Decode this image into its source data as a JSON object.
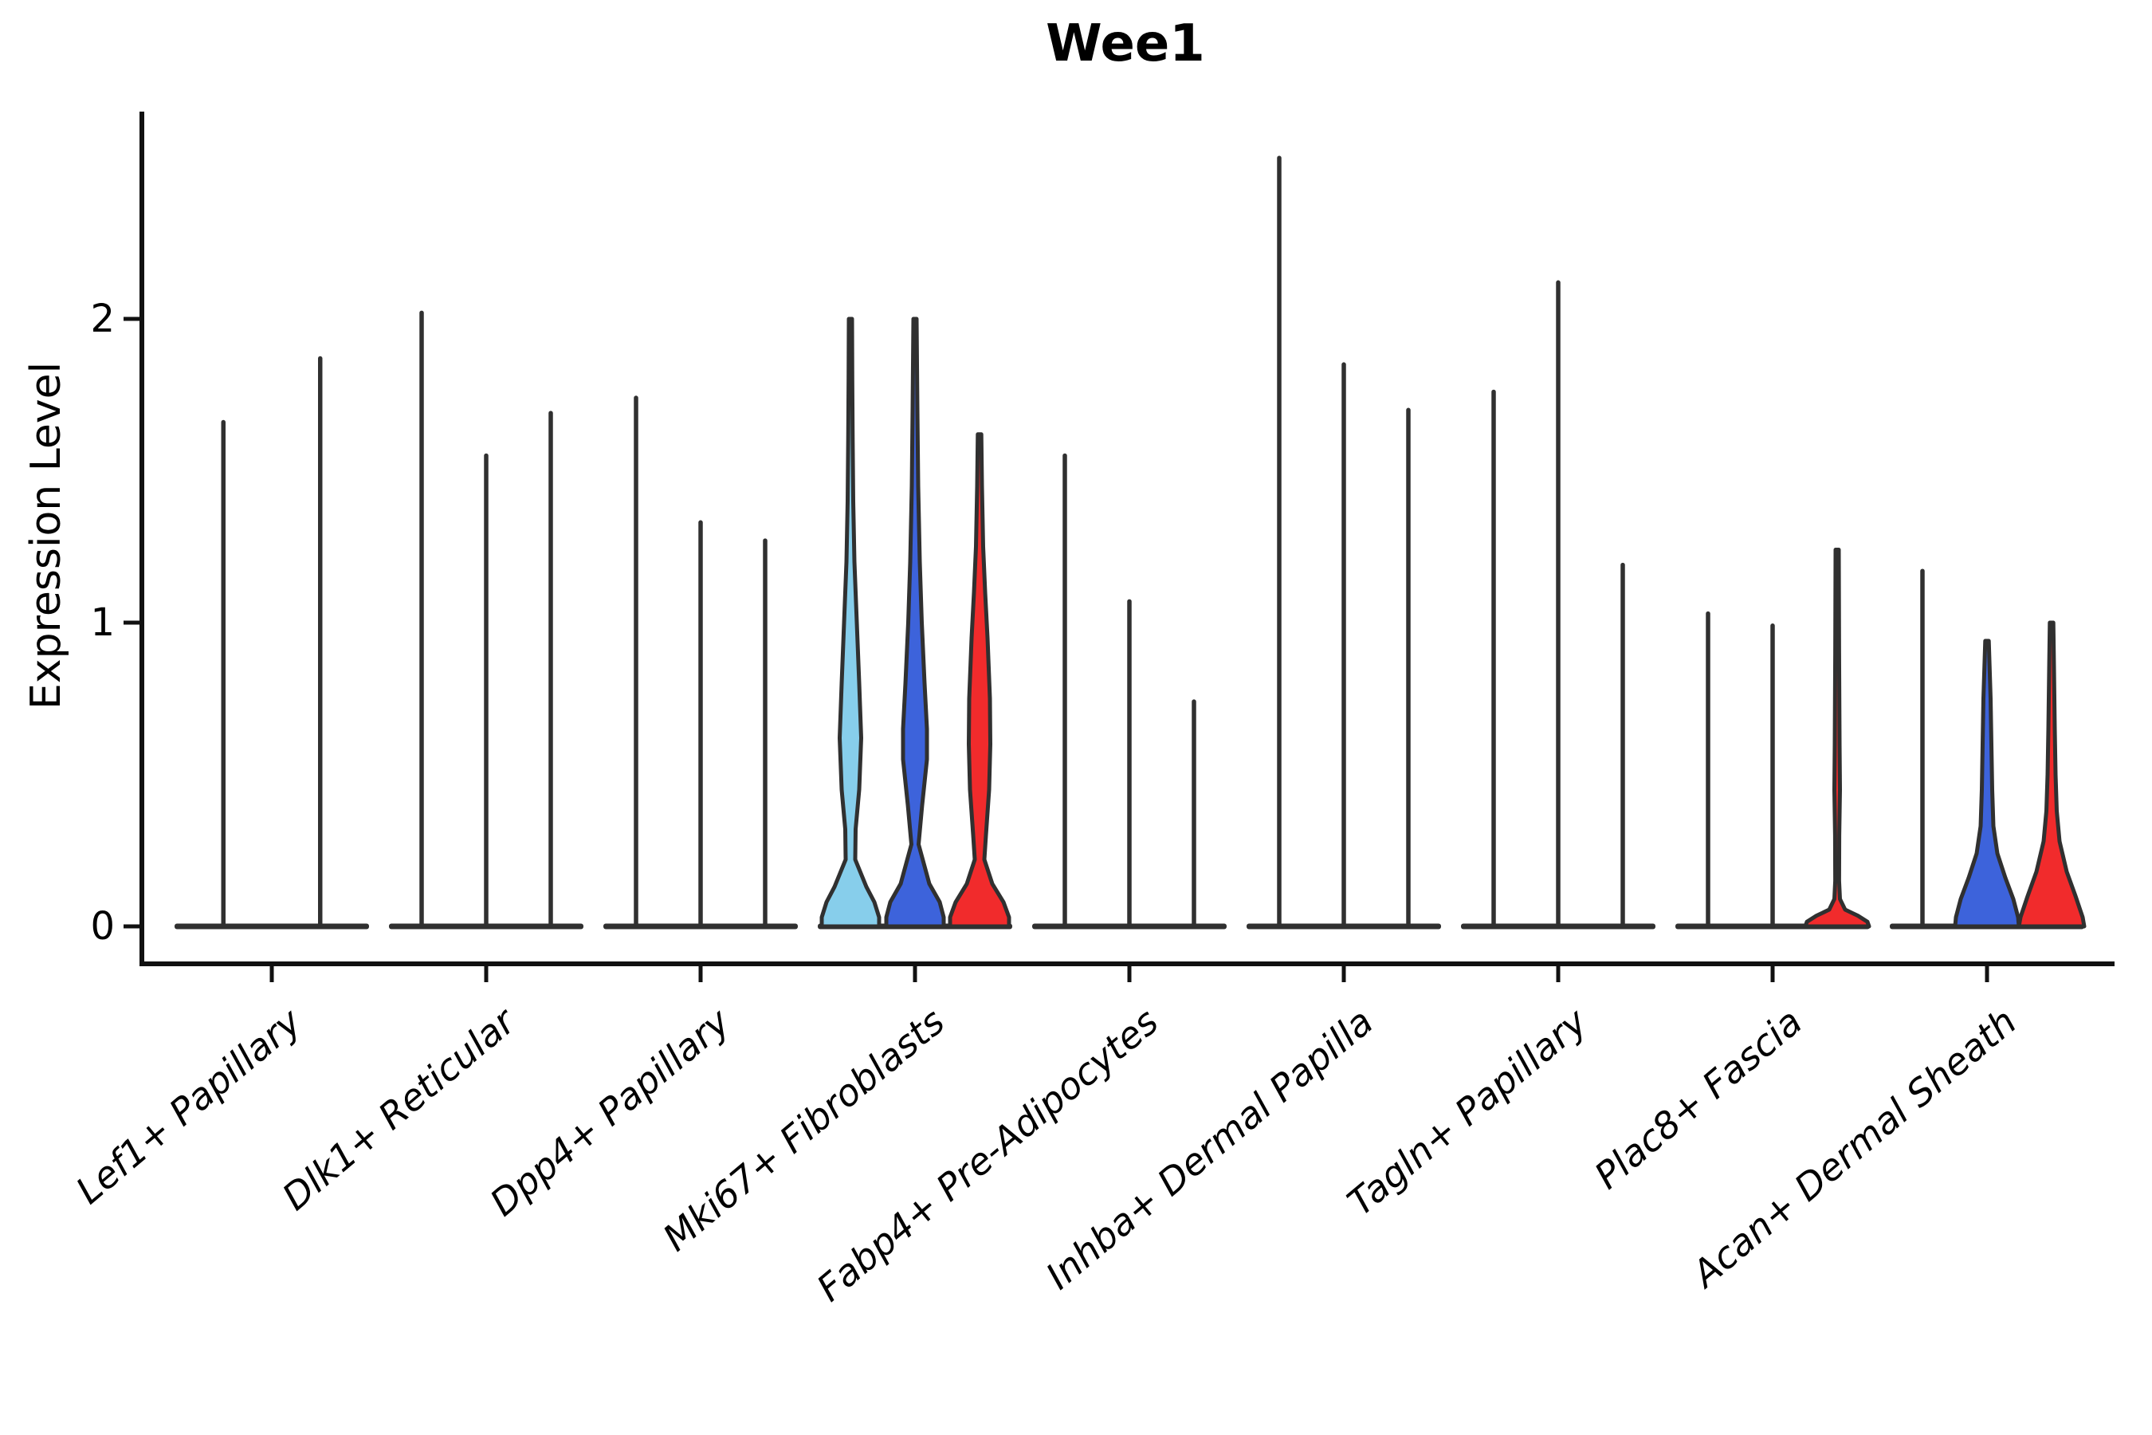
{
  "title": "Wee1",
  "colors": {
    "skyblue": "#87CEEB",
    "blue": "#3D63DB",
    "red": "#F12B2C",
    "outline": "#303030",
    "axis": "#111111"
  },
  "chart_data": {
    "type": "violin",
    "title": "Wee1",
    "xlabel": "",
    "ylabel": "Expression Level",
    "yticks": [
      0,
      1,
      2
    ],
    "ytick_labels": [
      "0",
      "1",
      "2"
    ],
    "ylim": [
      -0.17,
      2.68
    ],
    "grid": false,
    "legend": false,
    "categories": [
      "Lef1+ Papillary",
      "Dlk1+ Reticular",
      "Dpp4+ Papillary",
      "Mki67+ Fibroblasts",
      "Fabp4+ Pre-Adipocytes",
      "Inhba+ Dermal Papilla",
      "Tagln+ Papillary",
      "Plac8+ Fascia",
      "Acan+ Dermal Sheath"
    ],
    "groups": [
      {
        "violins": [
          {
            "kind": "spike",
            "pos": -0.75,
            "max": 1.66
          },
          {
            "kind": "spike",
            "pos": 0.75,
            "max": 1.87
          }
        ]
      },
      {
        "violins": [
          {
            "kind": "spike",
            "pos": -1,
            "max": 2.02
          },
          {
            "kind": "spike",
            "pos": 0,
            "max": 1.55
          },
          {
            "kind": "spike",
            "pos": 1,
            "max": 1.69
          }
        ]
      },
      {
        "violins": [
          {
            "kind": "spike",
            "pos": -1,
            "max": 1.74
          },
          {
            "kind": "spike",
            "pos": 0,
            "max": 1.33
          },
          {
            "kind": "spike",
            "pos": 1,
            "max": 1.27
          }
        ]
      },
      {
        "violins": [
          {
            "kind": "shape",
            "pos": -1,
            "max": 2.0,
            "color": "skyblue",
            "profile": [
              [
                0,
                36
              ],
              [
                0.03,
                36
              ],
              [
                0.08,
                30
              ],
              [
                0.13,
                20
              ],
              [
                0.22,
                6
              ],
              [
                0.32,
                6.5
              ],
              [
                0.45,
                11
              ],
              [
                0.62,
                13.5
              ],
              [
                0.8,
                11
              ],
              [
                1.0,
                8
              ],
              [
                1.2,
                5
              ],
              [
                1.4,
                3.5
              ],
              [
                1.6,
                2.8
              ],
              [
                1.8,
                2.3
              ],
              [
                2.0,
                2
              ]
            ]
          },
          {
            "kind": "shape",
            "pos": 0,
            "max": 2.0,
            "color": "blue",
            "profile": [
              [
                0,
                36
              ],
              [
                0.03,
                36
              ],
              [
                0.08,
                31
              ],
              [
                0.14,
                18
              ],
              [
                0.27,
                4.5
              ],
              [
                0.4,
                9
              ],
              [
                0.55,
                15
              ],
              [
                0.65,
                15
              ],
              [
                0.8,
                12
              ],
              [
                1.0,
                8.5
              ],
              [
                1.2,
                6
              ],
              [
                1.45,
                4
              ],
              [
                1.7,
                3
              ],
              [
                2.0,
                2
              ]
            ]
          },
          {
            "kind": "shape",
            "pos": 1,
            "max": 1.62,
            "color": "red",
            "profile": [
              [
                0,
                37
              ],
              [
                0.03,
                37
              ],
              [
                0.08,
                30
              ],
              [
                0.14,
                16
              ],
              [
                0.22,
                6
              ],
              [
                0.3,
                8
              ],
              [
                0.45,
                12
              ],
              [
                0.6,
                13.5
              ],
              [
                0.75,
                13
              ],
              [
                0.95,
                10
              ],
              [
                1.1,
                7
              ],
              [
                1.25,
                4.5
              ],
              [
                1.45,
                3
              ],
              [
                1.62,
                2.2
              ]
            ]
          }
        ]
      },
      {
        "violins": [
          {
            "kind": "spike",
            "pos": -1,
            "max": 1.55
          },
          {
            "kind": "spike",
            "pos": 0,
            "max": 1.07
          },
          {
            "kind": "spike",
            "pos": 1,
            "max": 0.74
          }
        ]
      },
      {
        "violins": [
          {
            "kind": "spike",
            "pos": -1,
            "max": 2.53
          },
          {
            "kind": "spike",
            "pos": 0,
            "max": 1.85
          },
          {
            "kind": "spike",
            "pos": 1,
            "max": 1.7
          }
        ]
      },
      {
        "violins": [
          {
            "kind": "spike",
            "pos": -1,
            "max": 1.76
          },
          {
            "kind": "spike",
            "pos": 0,
            "max": 2.12
          },
          {
            "kind": "spike",
            "pos": 1,
            "max": 1.19
          }
        ]
      },
      {
        "violins": [
          {
            "kind": "spike",
            "pos": -1,
            "max": 1.03
          },
          {
            "kind": "spike",
            "pos": 0,
            "max": 0.99
          },
          {
            "kind": "shape",
            "pos": 1,
            "max": 1.24,
            "color": "red",
            "profile": [
              [
                0,
                40
              ],
              [
                0.015,
                38
              ],
              [
                0.035,
                26
              ],
              [
                0.055,
                10
              ],
              [
                0.09,
                3.5
              ],
              [
                0.15,
                2.4
              ],
              [
                0.3,
                2.6
              ],
              [
                0.45,
                3.5
              ],
              [
                0.6,
                3
              ],
              [
                0.9,
                2.4
              ],
              [
                1.24,
                2
              ]
            ]
          }
        ]
      },
      {
        "violins": [
          {
            "kind": "spike",
            "pos": -1,
            "max": 1.17
          },
          {
            "kind": "shape",
            "pos": 0,
            "max": 0.94,
            "color": "blue",
            "profile": [
              [
                0,
                40
              ],
              [
                0.03,
                39
              ],
              [
                0.09,
                33
              ],
              [
                0.16,
                23
              ],
              [
                0.24,
                13
              ],
              [
                0.33,
                8
              ],
              [
                0.45,
                6.5
              ],
              [
                0.6,
                5.5
              ],
              [
                0.75,
                4.5
              ],
              [
                0.94,
                2.2
              ]
            ]
          },
          {
            "kind": "shape",
            "pos": 1,
            "max": 1.0,
            "color": "red",
            "profile": [
              [
                0,
                41
              ],
              [
                0.03,
                39
              ],
              [
                0.1,
                30
              ],
              [
                0.18,
                19
              ],
              [
                0.28,
                10
              ],
              [
                0.38,
                6.5
              ],
              [
                0.5,
                5
              ],
              [
                0.65,
                4
              ],
              [
                0.85,
                3
              ],
              [
                1.0,
                2.2
              ]
            ]
          }
        ]
      }
    ]
  }
}
